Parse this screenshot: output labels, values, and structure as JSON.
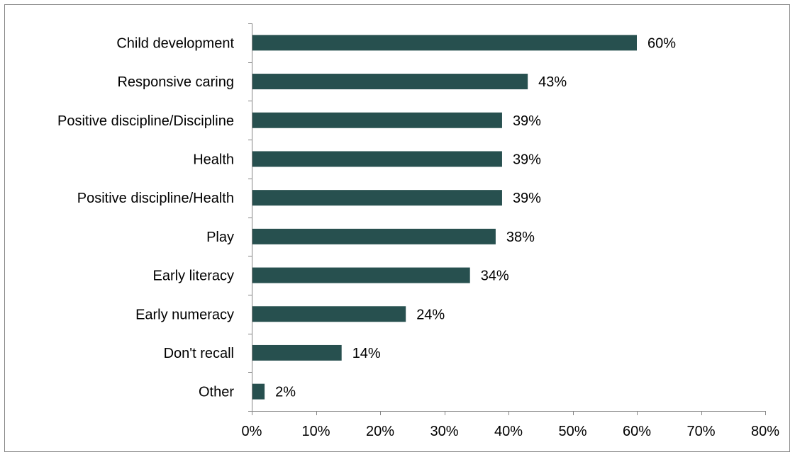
{
  "chart_data": {
    "type": "bar",
    "orientation": "horizontal",
    "title": "",
    "xlabel": "",
    "ylabel": "",
    "categories": [
      "Child development",
      "Responsive caring",
      "Positive discipline/Discipline",
      "Health",
      "Positive discipline/Health",
      "Play",
      "Early literacy",
      "Early numeracy",
      "Don't recall",
      "Other"
    ],
    "values": [
      60,
      43,
      39,
      39,
      39,
      38,
      34,
      24,
      14,
      2
    ],
    "value_labels": [
      "60%",
      "43%",
      "39%",
      "39%",
      "39%",
      "38%",
      "34%",
      "24%",
      "14%",
      "2%"
    ],
    "xlim": [
      0,
      80
    ],
    "x_ticks": [
      0,
      10,
      20,
      30,
      40,
      50,
      60,
      70,
      80
    ],
    "x_tick_labels": [
      "0%",
      "10%",
      "20%",
      "30%",
      "40%",
      "50%",
      "60%",
      "70%",
      "80%"
    ],
    "grid": false,
    "legend": "none",
    "bar_color": "#27504f"
  }
}
